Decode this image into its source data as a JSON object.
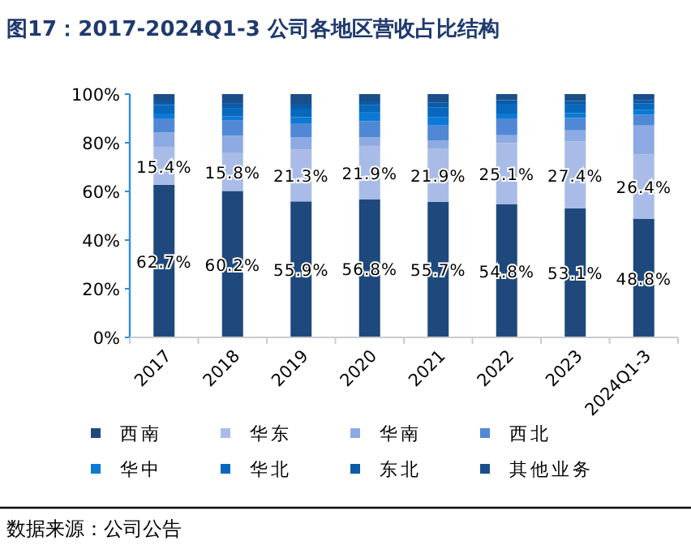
{
  "chart_data": {
    "type": "bar",
    "stacked": true,
    "title": "图17：2017-2024Q1-3 公司各地区营收占比结构",
    "categories": [
      "2017",
      "2018",
      "2019",
      "2020",
      "2021",
      "2022",
      "2023",
      "2024Q1-3"
    ],
    "series": [
      {
        "name": "西南",
        "color": "#1f497d",
        "values": [
          62.7,
          60.2,
          55.9,
          56.8,
          55.7,
          54.8,
          53.1,
          48.8
        ],
        "value_labels": [
          "62.7%",
          "60.2%",
          "55.9%",
          "56.8%",
          "55.7%",
          "54.8%",
          "53.1%",
          "48.8%"
        ]
      },
      {
        "name": "华东",
        "color": "#a9bce8",
        "values": [
          15.4,
          15.8,
          21.3,
          21.9,
          21.9,
          25.1,
          27.4,
          26.4
        ],
        "value_labels": [
          "15.4%",
          "15.8%",
          "21.3%",
          "21.9%",
          "21.9%",
          "25.1%",
          "27.4%",
          "26.4%"
        ]
      },
      {
        "name": "华南",
        "color": "#8eaae2",
        "values": [
          6.1,
          6.9,
          5.0,
          3.5,
          3.3,
          3.2,
          4.6,
          11.9
        ]
      },
      {
        "name": "西北",
        "color": "#5088d6",
        "values": [
          5.8,
          6.4,
          5.8,
          6.7,
          6.2,
          6.9,
          5.1,
          4.5
        ]
      },
      {
        "name": "华中",
        "color": "#0a7ad6",
        "values": [
          2.0,
          1.5,
          2.5,
          3.5,
          3.5,
          2.0,
          2.0,
          2.0
        ]
      },
      {
        "name": "华北",
        "color": "#0868bd",
        "values": [
          3.5,
          3.5,
          3.5,
          3.0,
          4.0,
          4.0,
          3.5,
          2.5
        ]
      },
      {
        "name": "东北",
        "color": "#0a5ba8",
        "values": [
          1.5,
          2.0,
          2.0,
          1.6,
          2.0,
          1.5,
          1.5,
          1.5
        ]
      },
      {
        "name": "其他业务",
        "color": "#1b4f8a",
        "values": [
          3.0,
          3.7,
          4.0,
          3.0,
          3.4,
          2.5,
          2.8,
          2.4
        ]
      }
    ],
    "ylim": [
      0,
      100
    ],
    "yticks": [
      {
        "value": 0,
        "label": "0%"
      },
      {
        "value": 20,
        "label": "20%"
      },
      {
        "value": 40,
        "label": "40%"
      },
      {
        "value": 60,
        "label": "60%"
      },
      {
        "value": 80,
        "label": "80%"
      },
      {
        "value": 100,
        "label": "100%"
      }
    ],
    "legend": "bottom",
    "grid": false,
    "annotations": [
      "数据来源：公司公告"
    ]
  }
}
